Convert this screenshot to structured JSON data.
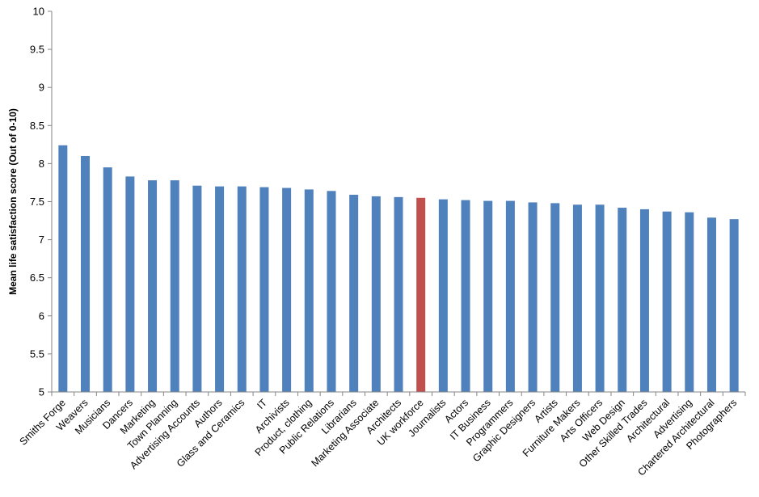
{
  "chart_data": {
    "type": "bar",
    "title": "",
    "xlabel": "",
    "ylabel": "Mean life satisfaction score (Out of 0-10)",
    "ylim": [
      5,
      10
    ],
    "yticks": [
      "5",
      "5.5",
      "6",
      "6.5",
      "7",
      "7.5",
      "8",
      "8.5",
      "9",
      "9.5",
      "10"
    ],
    "grid": false,
    "colors": {
      "default": "#4f81bd",
      "highlight": "#c0504d",
      "axis": "#868686"
    },
    "highlight_category": "UK workforce",
    "categories": [
      "Smiths Forge",
      "Weavers",
      "Musicians",
      "Dancers",
      "Marketing",
      "Town Planning",
      "Advertising Accounts",
      "Authors",
      "Glass and Ceramics",
      "IT",
      "Archivists",
      "Product, clothing",
      "Public Relations",
      "Librarians",
      "Marketing Associate",
      "Architects",
      "UK workforce",
      "Journalists",
      "Actors",
      "IT Business",
      "Programmers",
      "Graphic Designers",
      "Artists",
      "Furniture Makers",
      "Arts Officers",
      "Web Design",
      "Other Skilled Trades",
      "Architectural",
      "Advertising",
      "Chartered Architectural",
      "Photographers"
    ],
    "values": [
      8.24,
      8.1,
      7.95,
      7.83,
      7.78,
      7.78,
      7.71,
      7.7,
      7.7,
      7.69,
      7.68,
      7.66,
      7.64,
      7.59,
      7.57,
      7.56,
      7.55,
      7.53,
      7.52,
      7.51,
      7.51,
      7.49,
      7.48,
      7.46,
      7.46,
      7.42,
      7.4,
      7.37,
      7.36,
      7.29,
      7.27
    ]
  }
}
